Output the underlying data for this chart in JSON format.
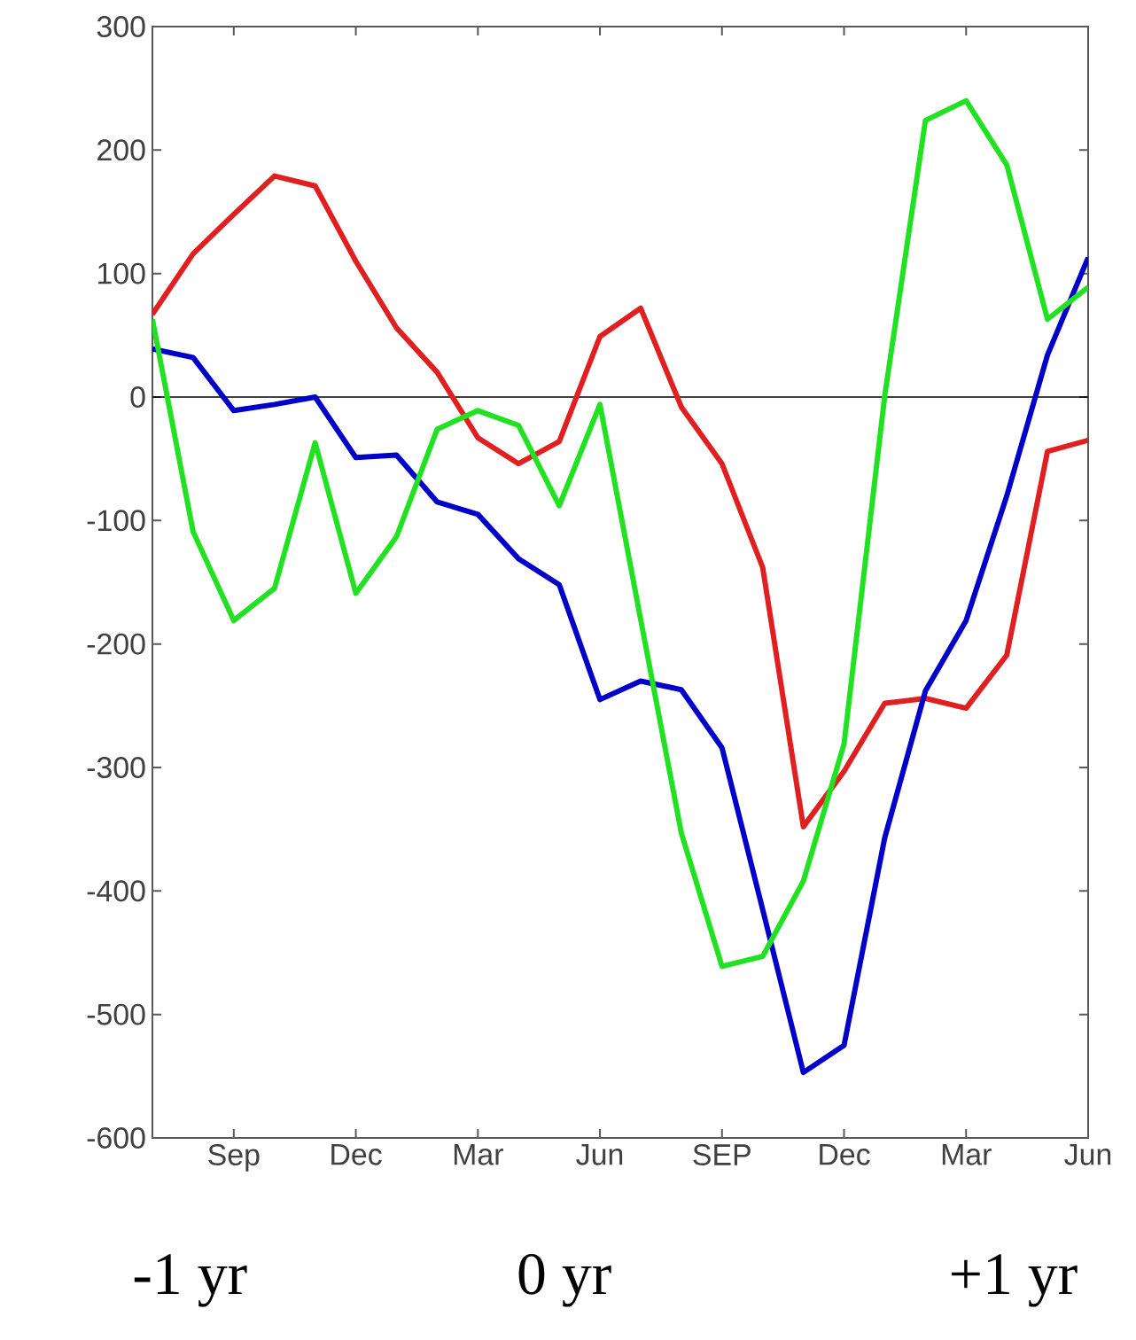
{
  "chart_data": {
    "type": "line",
    "categories": [
      null,
      null,
      "Sep",
      null,
      null,
      "Dec",
      null,
      null,
      "Mar",
      null,
      null,
      "Jun",
      null,
      null,
      "SEP",
      null,
      null,
      "Dec",
      null,
      null,
      "Mar",
      null,
      null,
      "Jun"
    ],
    "series": [
      {
        "color": "#e02020",
        "values": [
          67,
          116,
          148,
          179,
          171,
          110,
          56,
          20,
          -33,
          -54,
          -36,
          49,
          72,
          -8,
          -54,
          -138,
          -348,
          -303,
          -248,
          -244,
          -252,
          -209,
          -44,
          -35
        ]
      },
      {
        "color": "#0000c8",
        "values": [
          39,
          32,
          -11,
          -6,
          0,
          -49,
          -47,
          -85,
          -95,
          -131,
          -152,
          -245,
          -230,
          -237,
          -284,
          -415,
          -547,
          -525,
          -357,
          -238,
          -181,
          -80,
          34,
          113
        ]
      },
      {
        "color": "#22e022",
        "values": [
          63,
          -109,
          -181,
          -155,
          -37,
          -159,
          -113,
          -26,
          -11,
          -23,
          -88,
          -6,
          -180,
          -353,
          -461,
          -453,
          -392,
          -281,
          1,
          224,
          240,
          188,
          63,
          89
        ]
      }
    ],
    "ylim": [
      -600,
      300
    ],
    "yticks": [
      -600,
      -500,
      -400,
      -300,
      -200,
      -100,
      0,
      100,
      200,
      300
    ],
    "ref_lines": [
      {
        "axis": "y",
        "value": 0,
        "color": "#000000"
      }
    ],
    "marker": "none",
    "line_style": "solid",
    "annotations": [
      "-1 yr",
      "0 yr",
      "+1 yr"
    ]
  }
}
